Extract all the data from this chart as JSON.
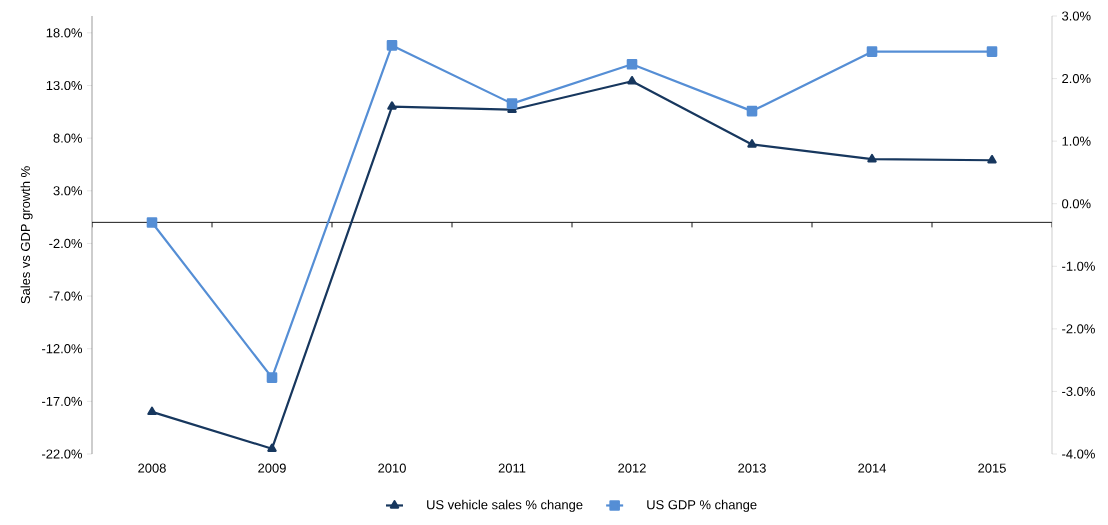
{
  "chart_data": {
    "type": "line",
    "ylabel": "Sales vs GDP growth %",
    "categories": [
      "2008",
      "2009",
      "2010",
      "2011",
      "2012",
      "2013",
      "2014",
      "2015"
    ],
    "series": [
      {
        "name": "US vehicle sales % change",
        "color": "#17375e",
        "marker": "triangle",
        "values": [
          -18.0,
          -21.5,
          11.0,
          10.7,
          13.4,
          7.4,
          6.0,
          5.9
        ]
      },
      {
        "name": "US GDP % change",
        "color": "#558ed5",
        "marker": "square",
        "axis": "y2",
        "values": [
          -0.3,
          -2.78,
          2.53,
          1.6,
          2.23,
          1.48,
          2.43,
          2.43
        ]
      }
    ],
    "ylim": [
      -22,
      19.6
    ],
    "yticks": [
      {
        "value": -22,
        "label": "-22.0%"
      },
      {
        "value": -17,
        "label": "-17.0%"
      },
      {
        "value": -12,
        "label": "-12.0%"
      },
      {
        "value": -7,
        "label": "-7.0%"
      },
      {
        "value": -2,
        "label": "-2.0%"
      },
      {
        "value": 3,
        "label": "3.0%"
      },
      {
        "value": 8,
        "label": "8.0%"
      },
      {
        "value": 13,
        "label": "13.0%"
      },
      {
        "value": 18,
        "label": "18.0%"
      }
    ],
    "y2lim": [
      -4,
      3
    ],
    "y2ticks": [
      {
        "value": -4,
        "label": "-4.0%"
      },
      {
        "value": -3,
        "label": "-3.0%"
      },
      {
        "value": -2,
        "label": "-2.0%"
      },
      {
        "value": -1,
        "label": "-1.0%"
      },
      {
        "value": 0,
        "label": "0.0%"
      },
      {
        "value": 1,
        "label": "1.0%"
      },
      {
        "value": 2,
        "label": "2.0%"
      },
      {
        "value": 3,
        "label": "3.0%"
      }
    ],
    "legend": "bottom"
  }
}
